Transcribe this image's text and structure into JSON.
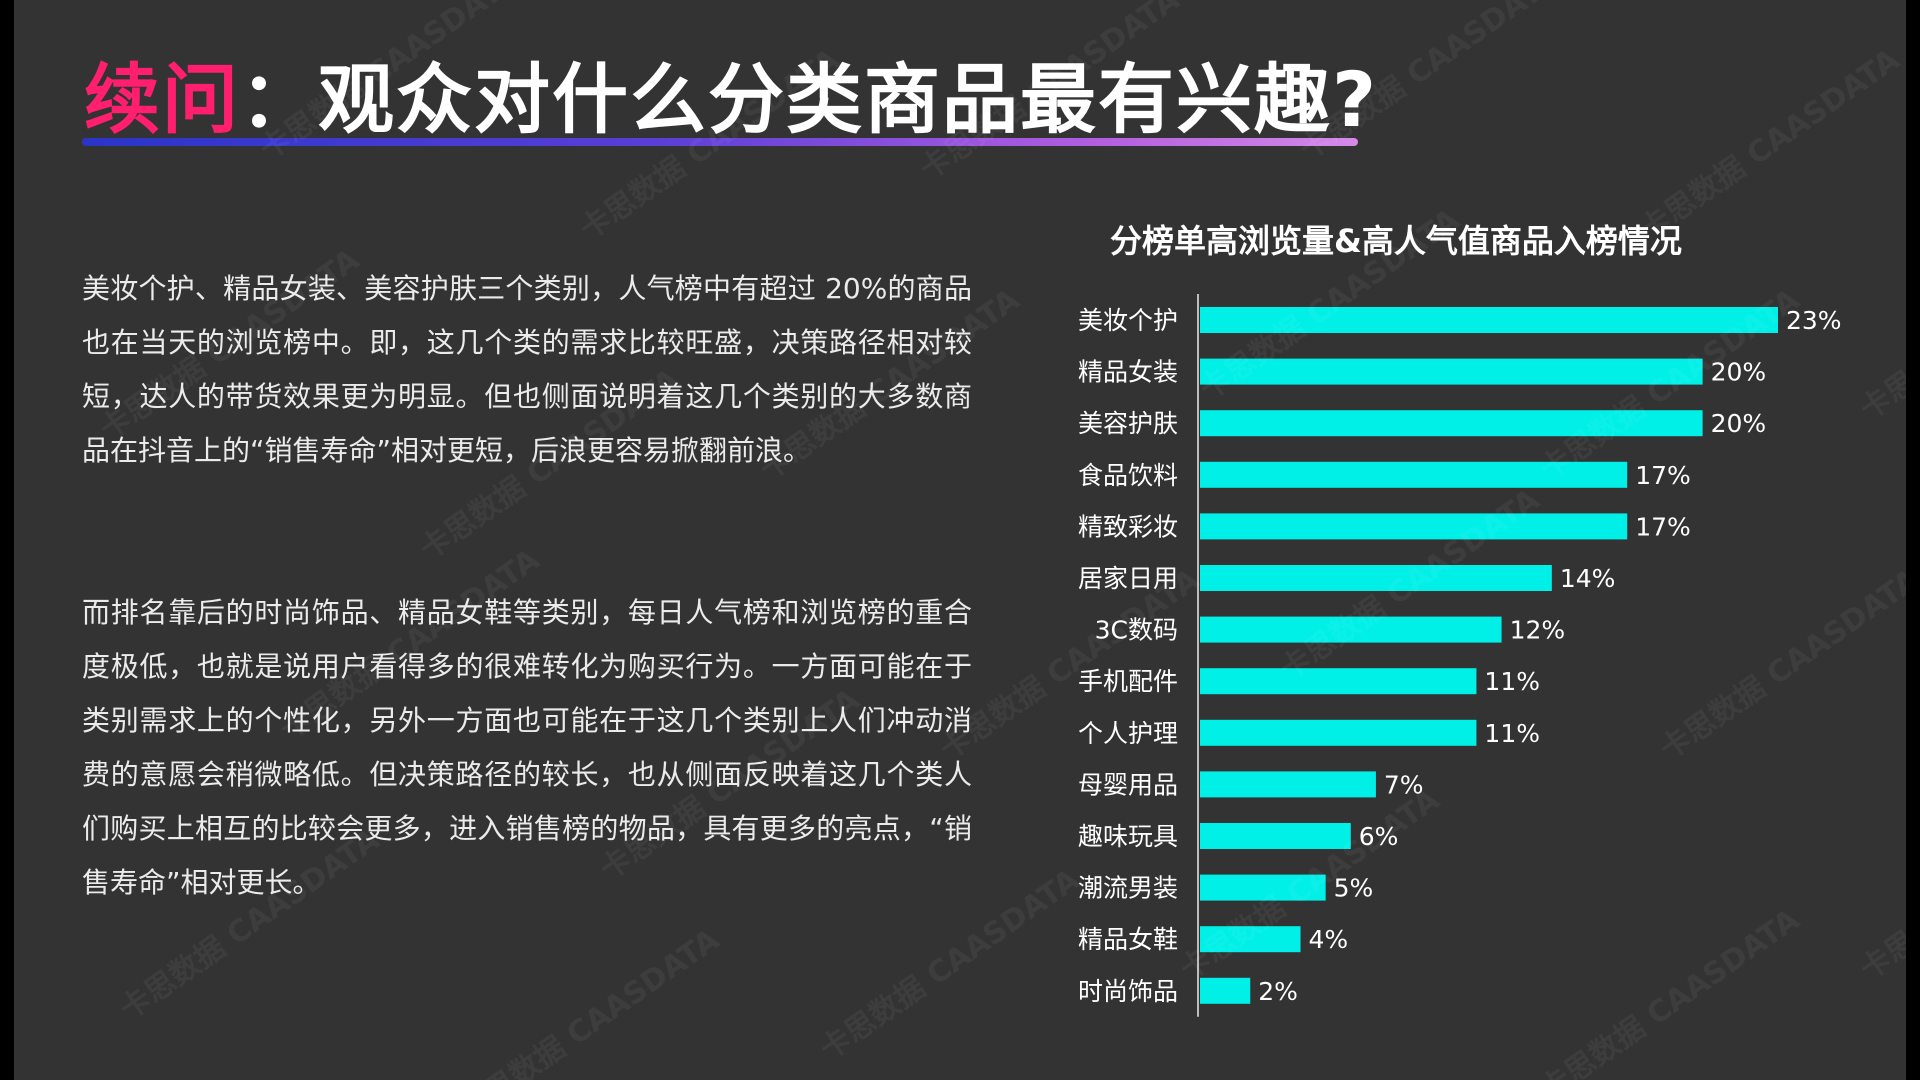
{
  "title": {
    "accent": "续问",
    "rest": "：观众对什么分类商品最有兴趣?"
  },
  "paragraphs": {
    "p1": "美妆个护、精品女装、美容护肤三个类别，人气榜中有超过 20%的商品也在当天的浏览榜中。即，这几个类的需求比较旺盛，决策路径相对较短，达人的带货效果更为明显。但也侧面说明着这几个类别的大多数商品在抖音上的“销售寿命”相对更短，后浪更容易掀翻前浪。",
    "p2": "而排名靠后的时尚饰品、精品女鞋等类别，每日人气榜和浏览榜的重合度极低，也就是说用户看得多的很难转化为购买行为。一方面可能在于类别需求上的个性化，另外一方面也可能在于这几个类别上人们冲动消费的意愿会稍微略低。但决策路径的较长，也从侧面反映着这几个类人们购买上相互的比较会更多，进入销售榜的物品，具有更多的亮点，“销售寿命”相对更长。"
  },
  "watermark": "卡思数据 CAASDATA",
  "colors": {
    "background": "#333333",
    "accent": "#ff1f6e",
    "bar": "#00f0e8",
    "text": "#ffffff"
  },
  "chart_data": {
    "type": "bar",
    "orientation": "horizontal",
    "title": "分榜单高浏览量&高人气值商品入榜情况",
    "categories": [
      "美妆个护",
      "精品女装",
      "美容护肤",
      "食品饮料",
      "精致彩妆",
      "居家日用",
      "3C数码",
      "手机配件",
      "个人护理",
      "母婴用品",
      "趣味玩具",
      "潮流男装",
      "精品女鞋",
      "时尚饰品"
    ],
    "values": [
      23,
      20,
      20,
      17,
      17,
      14,
      12,
      11,
      11,
      7,
      6,
      5,
      4,
      2
    ],
    "value_labels": [
      "23%",
      "20%",
      "20%",
      "17%",
      "17%",
      "14%",
      "12%",
      "11%",
      "11%",
      "7%",
      "6%",
      "5%",
      "4%",
      "2%"
    ],
    "unit": "%",
    "xlim": [
      0,
      23
    ],
    "grid": false,
    "legend": "none"
  }
}
